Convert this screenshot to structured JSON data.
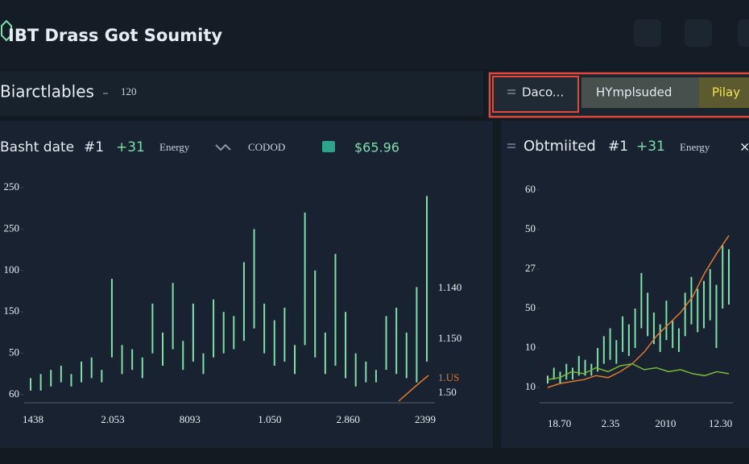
{
  "header": {
    "title": "IBT Drass Got Soumity"
  },
  "toolbar": {
    "title": "Biarctlables",
    "value": "120",
    "tabs": [
      "Daco...",
      "HYmplsuded",
      "Pilay"
    ]
  },
  "panels": [
    {
      "title": "Basht date",
      "badge": "#1",
      "change": "+31",
      "category": "Energy",
      "symbol": "CODOD",
      "price": "$65.96",
      "chart": {
        "color": "#7ee0a8",
        "ylim": [
          0,
          5
        ],
        "yticks": [
          {
            "value": 5,
            "label": "250"
          },
          {
            "value": 4,
            "label": "250"
          },
          {
            "value": 3,
            "label": "100"
          },
          {
            "value": 2,
            "label": "150"
          },
          {
            "value": 1,
            "label": "50"
          },
          {
            "value": 0,
            "label": "60"
          }
        ],
        "xticks": [
          "1438",
          "2.053",
          "8093",
          "1.050",
          "2.860",
          "2399"
        ],
        "right_labels": [
          "1.140",
          "1.150",
          "1.US",
          "1.50"
        ],
        "highs": [
          0.4,
          0.5,
          0.6,
          0.7,
          0.5,
          0.8,
          0.9,
          0.6,
          2.8,
          1.2,
          1.1,
          0.9,
          2.2,
          1.5,
          2.7,
          1.3,
          2.2,
          1.0,
          2.3,
          2.0,
          1.9,
          3.2,
          4.0,
          2.2,
          1.8,
          2.1,
          1.2,
          4.4,
          3.0,
          1.5,
          3.4,
          2.0,
          1.0,
          0.8,
          0.6,
          1.9,
          2.1,
          1.5,
          2.6,
          4.8
        ],
        "lows": [
          0.1,
          0.1,
          0.2,
          0.3,
          0.2,
          0.3,
          0.4,
          0.3,
          0.9,
          0.5,
          0.6,
          0.4,
          1.0,
          0.7,
          1.1,
          0.6,
          0.8,
          0.5,
          0.9,
          1.0,
          1.1,
          1.3,
          1.6,
          1.0,
          0.7,
          0.8,
          0.5,
          1.2,
          0.9,
          0.5,
          0.7,
          0.4,
          0.2,
          0.3,
          0.3,
          0.6,
          0.5,
          0.4,
          0.3,
          0.8
        ],
        "lines": []
      }
    },
    {
      "title": "Obtmiited",
      "badge": "#1",
      "change": "+31",
      "category": "Energy",
      "close": "×",
      "chart": {
        "color": "#7ee0a8",
        "ylim": [
          0,
          5
        ],
        "yticks": [
          {
            "value": 5,
            "label": "60"
          },
          {
            "value": 4,
            "label": "50"
          },
          {
            "value": 3,
            "label": "27"
          },
          {
            "value": 2,
            "label": "50"
          },
          {
            "value": 1,
            "label": "10"
          },
          {
            "value": 0,
            "label": "10"
          }
        ],
        "xticks": [
          "18.70",
          "2.35",
          "2010",
          "12.30"
        ],
        "right_labels": [],
        "highs": [
          0.3,
          0.5,
          0.4,
          0.6,
          0.5,
          0.8,
          0.7,
          0.6,
          1.0,
          1.3,
          1.5,
          1.2,
          1.8,
          1.6,
          2.0,
          2.9,
          2.4,
          1.9,
          1.6,
          2.2,
          1.7,
          1.5,
          2.4,
          2.8,
          2.5,
          2.7,
          3.0,
          2.6,
          3.6,
          3.5
        ],
        "lows": [
          0.1,
          0.2,
          0.1,
          0.2,
          0.2,
          0.3,
          0.3,
          0.3,
          0.4,
          0.6,
          0.7,
          0.6,
          0.9,
          0.8,
          1.0,
          1.5,
          1.3,
          1.1,
          0.9,
          1.2,
          1.0,
          0.9,
          1.3,
          1.6,
          1.4,
          1.5,
          1.7,
          1.0,
          2.0,
          2.1
        ],
        "lines": [
          {
            "color": "#e07a2e",
            "values": [
              0.0,
              0.1,
              0.15,
              0.2,
              0.3,
              0.25,
              0.4,
              0.6,
              0.9,
              1.3,
              1.6,
              1.9,
              2.3,
              2.9,
              3.4,
              3.85
            ]
          },
          {
            "color": "#7ab83a",
            "values": [
              0.2,
              0.25,
              0.4,
              0.35,
              0.5,
              0.4,
              0.55,
              0.6,
              0.45,
              0.5,
              0.4,
              0.45,
              0.35,
              0.3,
              0.4,
              0.35
            ]
          }
        ]
      }
    }
  ]
}
